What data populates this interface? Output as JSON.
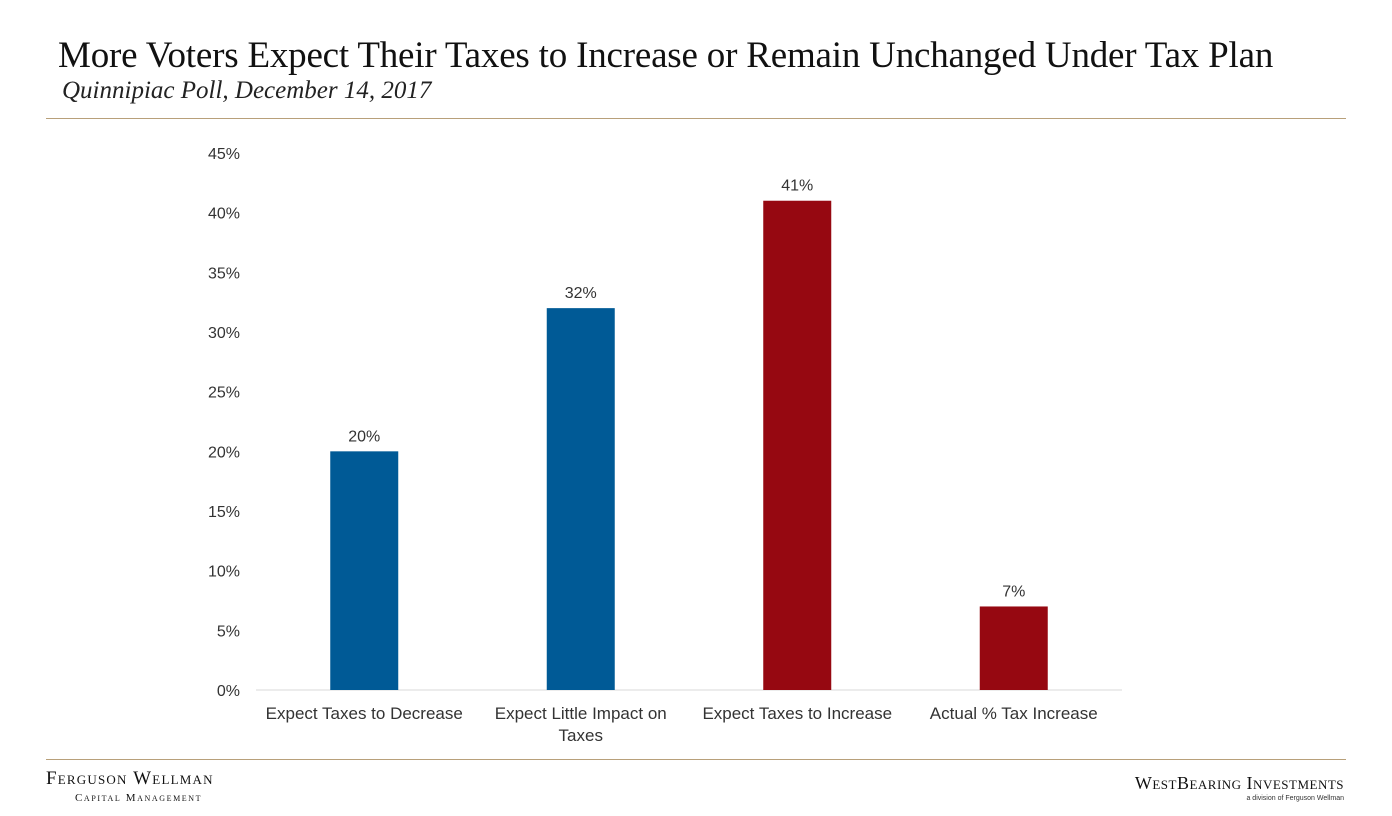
{
  "header": {
    "title": "More Voters Expect Their Taxes to Increase or Remain Unchanged Under Tax Plan",
    "subtitle": "Quinnipiac Poll, December 14, 2017"
  },
  "chart_data": {
    "type": "bar",
    "title": "More Voters Expect Their Taxes to Increase or Remain Unchanged Under Tax Plan",
    "subtitle": "Quinnipiac Poll, December 14, 2017",
    "xlabel": "",
    "ylabel": "",
    "ylim": [
      0,
      45
    ],
    "yticks": [
      0,
      5,
      10,
      15,
      20,
      25,
      30,
      35,
      40,
      45
    ],
    "ytick_labels": [
      "0%",
      "5%",
      "10%",
      "15%",
      "20%",
      "25%",
      "30%",
      "35%",
      "40%",
      "45%"
    ],
    "grid": false,
    "legend": "none",
    "categories": [
      [
        "Expect Taxes to Decrease"
      ],
      [
        "Expect Little Impact on",
        "Taxes"
      ],
      [
        "Expect Taxes to Increase"
      ],
      [
        "Actual % Tax Increase"
      ]
    ],
    "values": [
      20,
      32,
      41,
      7
    ],
    "data_labels": [
      "20%",
      "32%",
      "41%",
      "7%"
    ],
    "bar_colors": [
      "#005a96",
      "#005a96",
      "#960811",
      "#960811"
    ],
    "axis_color": "#d9d9d9",
    "label_color": "#333333"
  },
  "footer": {
    "left_brand": "Ferguson Wellman",
    "left_sub": "Capital Management",
    "right_brand": "WestBearing Investments",
    "right_sub": "a division of Ferguson Wellman"
  }
}
